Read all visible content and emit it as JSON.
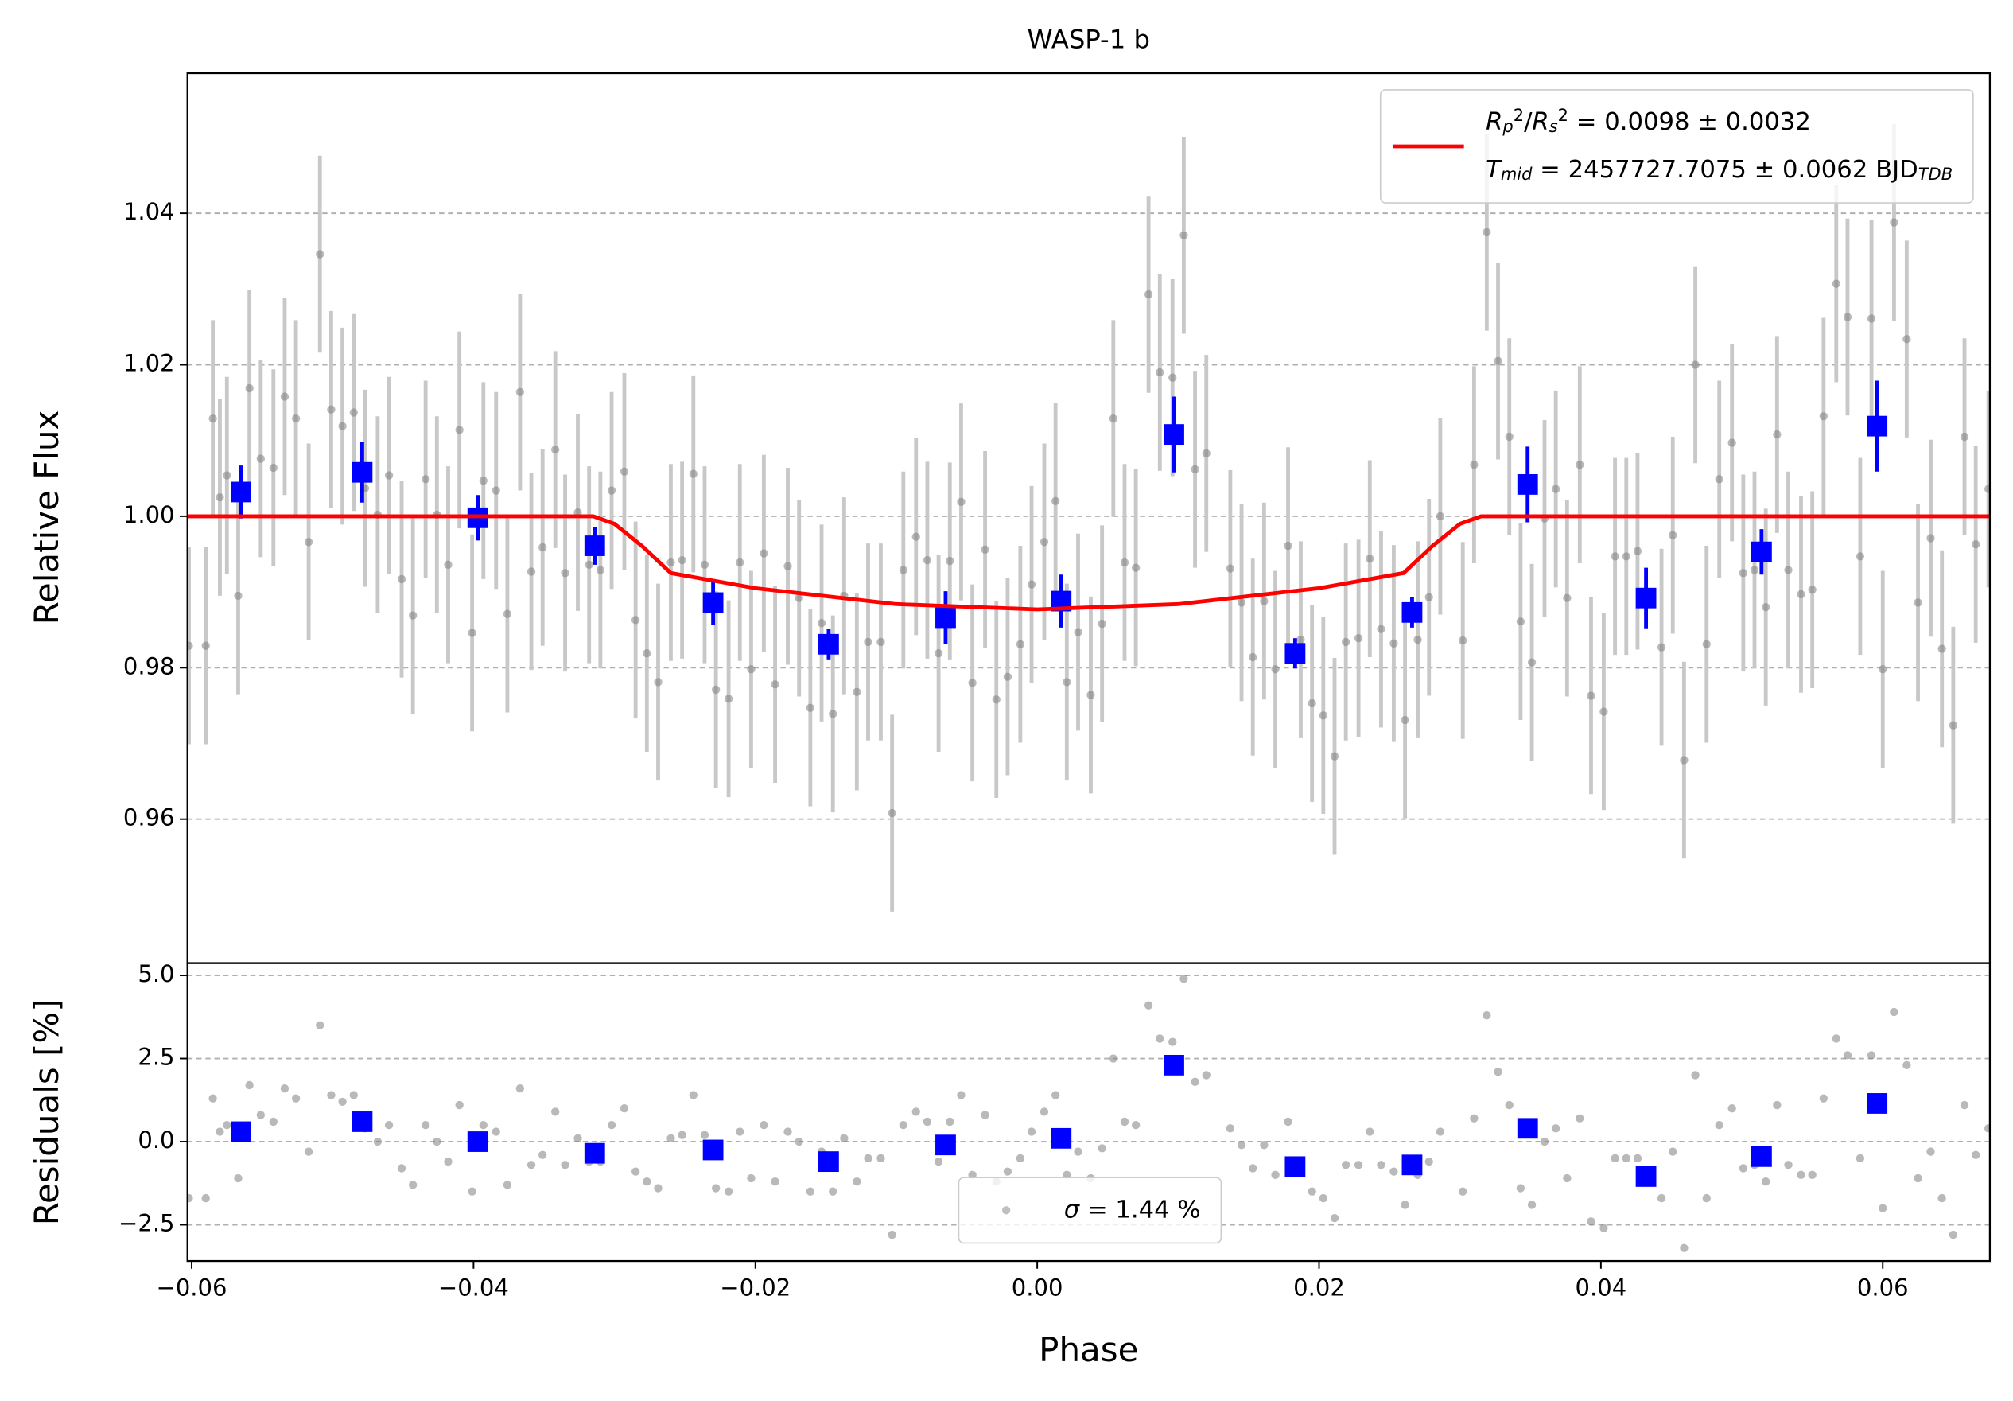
{
  "chart_data": [
    {
      "type": "scatter",
      "title": "WASP-1 b",
      "y_label": "Relative Flux",
      "xlim": [
        -0.0603,
        0.0676
      ],
      "ylim": [
        0.941,
        1.0585
      ],
      "yticks": [
        0.96,
        0.98,
        {
          "value": 1.0,
          "label": "1.00"
        },
        1.02,
        1.04
      ],
      "grid": true,
      "legend": "upper right",
      "series": [
        {
          "color": "#808080",
          "error_color": "#c8c8c8",
          "marker": "circle",
          "error": 0.013,
          "x": [
            -0.0602,
            -0.059,
            -0.0585,
            -0.058,
            -0.0575,
            -0.0567,
            -0.0559,
            -0.0551,
            -0.0542,
            -0.0534,
            -0.0526,
            -0.0517,
            -0.0509,
            -0.0501,
            -0.0493,
            -0.0485,
            -0.0477,
            -0.0468,
            -0.046,
            -0.0451,
            -0.0443,
            -0.0434,
            -0.0426,
            -0.0418,
            -0.041,
            -0.0401,
            -0.0393,
            -0.0384,
            -0.0376,
            -0.0367,
            -0.0359,
            -0.0351,
            -0.0342,
            -0.0335,
            -0.0326,
            -0.0318,
            -0.031,
            -0.0302,
            -0.0293,
            -0.0285,
            -0.0277,
            -0.0269,
            -0.026,
            -0.0252,
            -0.0244,
            -0.0236,
            -0.0228,
            -0.0219,
            -0.0211,
            -0.0203,
            -0.0194,
            -0.0186,
            -0.0177,
            -0.0169,
            -0.0161,
            -0.0153,
            -0.0145,
            -0.0137,
            -0.0128,
            -0.012,
            -0.0111,
            -0.0103,
            -0.0095,
            -0.0086,
            -0.0078,
            -0.007,
            -0.0062,
            -0.0054,
            -0.0046,
            -0.0037,
            -0.0029,
            -0.0021,
            -0.0012,
            -0.0004,
            0.0005,
            0.0013,
            0.0021,
            0.0029,
            0.0038,
            0.0046,
            0.0054,
            0.0062,
            0.007,
            0.0079,
            0.0087,
            0.0096,
            0.0104,
            0.0112,
            0.012,
            0.0137,
            0.0145,
            0.0153,
            0.0161,
            0.0169,
            0.0178,
            0.0187,
            0.0195,
            0.0203,
            0.0211,
            0.0219,
            0.0228,
            0.0236,
            0.0244,
            0.0253,
            0.0261,
            0.027,
            0.0278,
            0.0286,
            0.0302,
            0.031,
            0.0319,
            0.0327,
            0.0335,
            0.0343,
            0.0351,
            0.036,
            0.0368,
            0.0376,
            0.0385,
            0.0393,
            0.0402,
            0.041,
            0.0418,
            0.0426,
            0.0443,
            0.0451,
            0.0459,
            0.0467,
            0.0475,
            0.0484,
            0.0493,
            0.0501,
            0.0509,
            0.0517,
            0.0525,
            0.0533,
            0.0542,
            0.055,
            0.0558,
            0.0567,
            0.0575,
            0.0584,
            0.0592,
            0.06,
            0.0608,
            0.0617,
            0.0625,
            0.0634,
            0.0642,
            0.065,
            0.0658,
            0.0666,
            0.0675
          ],
          "values": [
            0.9829,
            0.9829,
            1.0129,
            1.0025,
            1.0054,
            0.9895,
            1.0169,
            1.0076,
            1.0064,
            1.0158,
            1.0129,
            0.9966,
            1.0346,
            1.0141,
            1.0119,
            1.0137,
            1.0037,
            1.0002,
            1.0054,
            0.9917,
            0.9869,
            1.0049,
            1.0002,
            0.9936,
            1.0114,
            0.9846,
            1.0047,
            1.0034,
            0.9871,
            1.0164,
            0.9927,
            0.9959,
            1.0088,
            0.9925,
            1.0005,
            0.9936,
            0.9929,
            1.0034,
            1.0059,
            0.9863,
            0.9819,
            0.9781,
            0.9939,
            0.9942,
            1.0056,
            0.9936,
            0.9771,
            0.9759,
            0.9939,
            0.9798,
            0.9951,
            0.9778,
            0.9934,
            0.9892,
            0.9747,
            0.9859,
            0.9739,
            0.9895,
            0.9768,
            0.9834,
            0.9834,
            0.9608,
            0.9929,
            0.9973,
            0.9942,
            0.9819,
            0.9941,
            1.0019,
            0.978,
            0.9956,
            0.9758,
            0.9788,
            0.9831,
            0.991,
            0.9966,
            1.002,
            0.9781,
            0.9847,
            0.9764,
            0.9858,
            1.0129,
            0.9939,
            0.9932,
            1.0293,
            1.019,
            1.0183,
            1.0371,
            1.0062,
            1.0083,
            0.9931,
            0.9886,
            0.9814,
            0.9888,
            0.9798,
            0.9961,
            0.9837,
            0.9753,
            0.9737,
            0.9683,
            0.9834,
            0.9839,
            0.9944,
            0.9851,
            0.9832,
            0.9731,
            0.9837,
            0.9893,
            1.0,
            0.9836,
            1.0068,
            1.0375,
            1.0205,
            1.0105,
            0.9861,
            0.9807,
            0.9997,
            1.0036,
            0.9892,
            1.0068,
            0.9763,
            0.9742,
            0.9947,
            0.9947,
            0.9954,
            0.9827,
            0.9975,
            0.9678,
            1.02,
            0.9831,
            1.0049,
            1.0097,
            0.9925,
            0.9929,
            0.988,
            1.0108,
            0.9929,
            0.9897,
            0.9903,
            1.0132,
            1.0307,
            1.0263,
            0.9947,
            1.0261,
            0.9798,
            1.0388,
            1.0234,
            0.9886,
            0.9971,
            0.9825,
            0.9724,
            1.0105,
            0.9963,
            1.0036
          ]
        },
        {
          "color": "#0000ff",
          "marker": "square",
          "x": [
            -0.0565,
            -0.0479,
            -0.0397,
            -0.0314,
            -0.023,
            -0.0148,
            -0.0065,
            0.0017,
            0.0097,
            0.0183,
            0.0266,
            0.0348,
            0.0432,
            0.0514,
            0.0596
          ],
          "values": [
            1.0032,
            1.0058,
            0.9998,
            0.9961,
            0.9886,
            0.9831,
            0.9866,
            0.9888,
            1.0108,
            0.9819,
            0.9873,
            1.0042,
            0.9892,
            0.9953,
            1.0119
          ],
          "errors": [
            0.0035,
            0.004,
            0.003,
            0.0025,
            0.003,
            0.002,
            0.0035,
            0.0035,
            0.005,
            0.002,
            0.002,
            0.005,
            0.004,
            0.003,
            0.006
          ]
        },
        {
          "color": "#ff0000",
          "marker": "line",
          "name": [
            [
              {
                "text": "R",
                "style": "italic"
              },
              {
                "text": "p",
                "style": "italic sub"
              },
              {
                "text": "2",
                "style": "sup"
              },
              {
                "text": "/"
              },
              {
                "text": "R",
                "style": "italic"
              },
              {
                "text": "s",
                "style": "italic sub"
              },
              {
                "text": "2",
                "style": "sup"
              },
              {
                "text": " = 0.0098 ± 0.0032"
              }
            ],
            [
              {
                "text": "T",
                "style": "italic"
              },
              {
                "text": "mid",
                "style": "italic sub"
              },
              {
                "text": " = 2457727.7075 ± 0.0062 BJD"
              },
              {
                "text": "TDB",
                "style": "italic sub"
              }
            ]
          ],
          "x": [
            -0.0603,
            -0.0315,
            -0.03,
            -0.028,
            -0.026,
            -0.02,
            -0.01,
            0,
            0.01,
            0.02,
            0.026,
            0.028,
            0.03,
            0.0315,
            0.0676
          ],
          "values": [
            1,
            1,
            0.999,
            0.996,
            0.9925,
            0.9905,
            0.9884,
            0.9877,
            0.9884,
            0.9905,
            0.9925,
            0.996,
            0.999,
            1,
            1
          ]
        }
      ]
    },
    {
      "type": "scatter",
      "x_label": "Phase",
      "y_label": "Residuals [%]",
      "xlim": [
        -0.0603,
        0.0676
      ],
      "ylim": [
        -3.59,
        5.37
      ],
      "xticks": [
        {
          "value": -0.06,
          "label": "−0.06"
        },
        {
          "value": -0.04,
          "label": "−0.04"
        },
        {
          "value": -0.02,
          "label": "−0.02"
        },
        {
          "value": 0,
          "label": "0.00"
        },
        0.02,
        0.04,
        0.06
      ],
      "yticks": [
        {
          "value": -2.5,
          "label": "−2.5"
        },
        {
          "value": 0,
          "label": "0.0"
        },
        2.5,
        {
          "value": 5,
          "label": "5.0"
        }
      ],
      "grid": true,
      "legend": "lower center",
      "series": [
        {
          "color": "#808080",
          "marker": "circle",
          "name": [
            [
              {
                "text": "σ",
                "style": "italic"
              },
              {
                "text": " = 1.44 %"
              }
            ]
          ],
          "x": [
            -0.0602,
            -0.059,
            -0.0585,
            -0.058,
            -0.0575,
            -0.0567,
            -0.0559,
            -0.0551,
            -0.0542,
            -0.0534,
            -0.0526,
            -0.0517,
            -0.0509,
            -0.0501,
            -0.0493,
            -0.0485,
            -0.0477,
            -0.0468,
            -0.046,
            -0.0451,
            -0.0443,
            -0.0434,
            -0.0426,
            -0.0418,
            -0.041,
            -0.0401,
            -0.0393,
            -0.0384,
            -0.0376,
            -0.0367,
            -0.0359,
            -0.0351,
            -0.0342,
            -0.0335,
            -0.0326,
            -0.0318,
            -0.031,
            -0.0302,
            -0.0293,
            -0.0285,
            -0.0277,
            -0.0269,
            -0.026,
            -0.0252,
            -0.0244,
            -0.0236,
            -0.0228,
            -0.0219,
            -0.0211,
            -0.0203,
            -0.0194,
            -0.0186,
            -0.0177,
            -0.0169,
            -0.0161,
            -0.0153,
            -0.0145,
            -0.0137,
            -0.0128,
            -0.012,
            -0.0111,
            -0.0103,
            -0.0095,
            -0.0086,
            -0.0078,
            -0.007,
            -0.0062,
            -0.0054,
            -0.0046,
            -0.0037,
            -0.0029,
            -0.0021,
            -0.0012,
            -0.0004,
            0.0005,
            0.0013,
            0.0021,
            0.0029,
            0.0038,
            0.0046,
            0.0054,
            0.0062,
            0.007,
            0.0079,
            0.0087,
            0.0096,
            0.0104,
            0.0112,
            0.012,
            0.0137,
            0.0145,
            0.0153,
            0.0161,
            0.0169,
            0.0178,
            0.0187,
            0.0195,
            0.0203,
            0.0211,
            0.0219,
            0.0228,
            0.0236,
            0.0244,
            0.0253,
            0.0261,
            0.027,
            0.0278,
            0.0286,
            0.0302,
            0.031,
            0.0319,
            0.0327,
            0.0335,
            0.0343,
            0.0351,
            0.036,
            0.0368,
            0.0376,
            0.0385,
            0.0393,
            0.0402,
            0.041,
            0.0418,
            0.0426,
            0.0443,
            0.0451,
            0.0459,
            0.0467,
            0.0475,
            0.0484,
            0.0493,
            0.0501,
            0.0509,
            0.0517,
            0.0525,
            0.0533,
            0.0542,
            0.055,
            0.0558,
            0.0567,
            0.0575,
            0.0584,
            0.0592,
            0.06,
            0.0608,
            0.0617,
            0.0625,
            0.0634,
            0.0642,
            0.065,
            0.0658,
            0.0666,
            0.0675
          ],
          "values": [
            -1.7,
            -1.7,
            1.3,
            0.3,
            0.5,
            -1.1,
            1.7,
            0.8,
            0.6,
            1.6,
            1.3,
            -0.3,
            3.5,
            1.4,
            1.2,
            1.4,
            0.4,
            0.0,
            0.5,
            -0.8,
            -1.3,
            0.5,
            0.0,
            -0.6,
            1.1,
            -1.5,
            0.5,
            0.3,
            -1.3,
            1.6,
            -0.7,
            -0.4,
            0.9,
            -0.7,
            0.1,
            -0.6,
            -0.6,
            0.5,
            1.0,
            -0.9,
            -1.2,
            -1.4,
            0.1,
            0.2,
            1.4,
            0.2,
            -1.4,
            -1.5,
            0.3,
            -1.1,
            0.5,
            -1.2,
            0.3,
            0.0,
            -1.5,
            -0.3,
            -1.5,
            0.1,
            -1.2,
            -0.5,
            -0.5,
            -2.8,
            0.5,
            0.9,
            0.6,
            -0.6,
            0.6,
            1.4,
            -1.0,
            0.8,
            -1.2,
            -0.9,
            -0.5,
            0.3,
            0.9,
            1.4,
            -1.0,
            -0.3,
            -1.1,
            -0.2,
            2.5,
            0.6,
            0.5,
            4.1,
            3.1,
            3.0,
            4.9,
            1.8,
            2.0,
            0.4,
            -0.1,
            -0.8,
            -0.1,
            -1.0,
            0.6,
            -0.7,
            -1.5,
            -1.7,
            -2.3,
            -0.7,
            -0.7,
            0.3,
            -0.7,
            -0.9,
            -1.9,
            -1.0,
            -0.6,
            0.3,
            -1.5,
            0.7,
            3.8,
            2.1,
            1.1,
            -1.4,
            -1.9,
            0.0,
            0.4,
            -1.1,
            0.7,
            -2.4,
            -2.6,
            -0.5,
            -0.5,
            -0.5,
            -1.7,
            -0.3,
            -3.2,
            2.0,
            -1.7,
            0.5,
            1.0,
            -0.8,
            -0.7,
            -1.2,
            1.1,
            -0.7,
            -1.0,
            -1.0,
            1.3,
            3.1,
            2.6,
            -0.5,
            2.6,
            -2.0,
            3.9,
            2.3,
            -1.1,
            -0.3,
            -1.7,
            -2.8,
            1.1,
            -0.4,
            0.4
          ]
        },
        {
          "color": "#0000ff",
          "marker": "square",
          "x": [
            -0.0565,
            -0.0479,
            -0.0397,
            -0.0314,
            -0.023,
            -0.0148,
            -0.0065,
            0.0017,
            0.0097,
            0.0183,
            0.0266,
            0.0348,
            0.0432,
            0.0514,
            0.0596
          ],
          "values": [
            0.3,
            0.6,
            0.0,
            -0.35,
            -0.25,
            -0.6,
            -0.1,
            0.1,
            2.3,
            -0.75,
            -0.7,
            0.4,
            -1.05,
            -0.45,
            1.15
          ]
        }
      ]
    }
  ]
}
